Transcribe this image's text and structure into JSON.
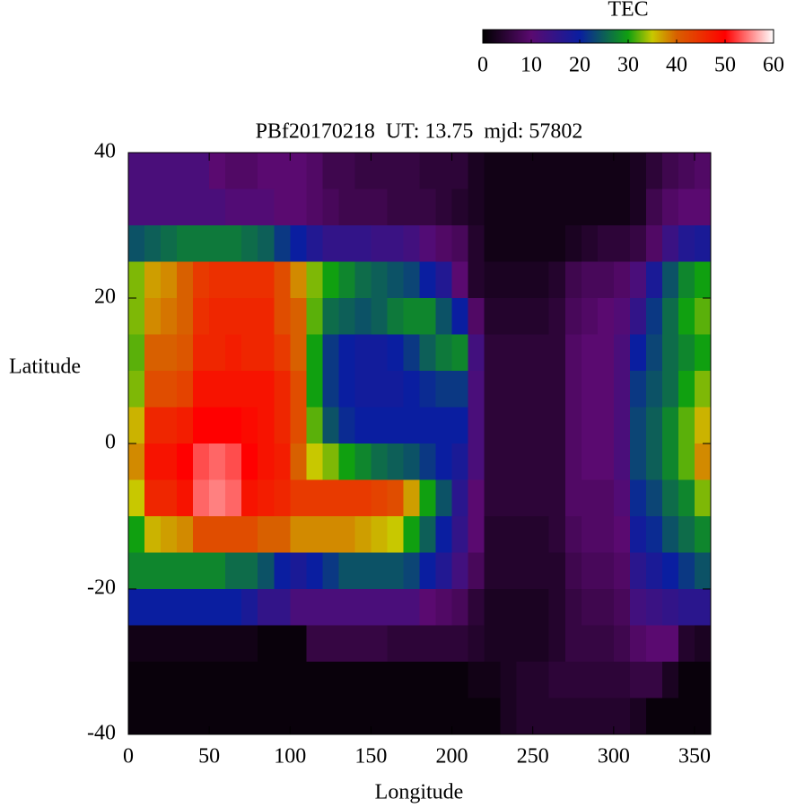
{
  "chart_data": {
    "type": "heatmap",
    "title": "PBf20170218  UT: 13.75  mjd: 57802",
    "x_label": "Longitude",
    "y_label": "Latitude",
    "xlim": [
      0,
      360
    ],
    "ylim": [
      -40,
      40
    ],
    "xticks": [
      0,
      50,
      100,
      150,
      200,
      250,
      300,
      350
    ],
    "yticks": [
      -40,
      -20,
      0,
      20,
      40
    ],
    "x": [
      5,
      15,
      25,
      35,
      45,
      55,
      65,
      75,
      85,
      95,
      105,
      115,
      125,
      135,
      145,
      155,
      165,
      175,
      185,
      195,
      205,
      215,
      225,
      235,
      245,
      255,
      265,
      275,
      285,
      295,
      305,
      315,
      325,
      335,
      345,
      355
    ],
    "y": [
      37.5,
      32.5,
      27.5,
      22.5,
      17.5,
      12.5,
      7.5,
      2.5,
      -2.5,
      -7.5,
      -12.5,
      -17.5,
      -22.5,
      -27.5,
      -32.5,
      -37.5
    ],
    "z": [
      [
        12,
        12,
        12,
        12,
        12,
        10,
        9,
        9,
        10,
        10,
        10,
        9,
        7,
        7,
        6,
        6,
        6,
        6,
        5,
        5,
        5,
        3,
        2,
        2,
        2,
        2,
        2,
        2,
        2,
        2,
        2,
        3,
        5,
        7,
        8,
        9
      ],
      [
        12,
        12,
        12,
        12,
        12,
        12,
        11,
        11,
        11,
        10,
        10,
        9,
        8,
        7,
        7,
        7,
        6,
        6,
        6,
        5,
        4,
        3,
        2,
        2,
        2,
        2,
        2,
        2,
        2,
        2,
        2,
        3,
        7,
        9,
        10,
        10
      ],
      [
        24,
        25,
        26,
        27,
        27,
        27,
        27,
        26,
        25,
        22,
        20,
        17,
        15,
        15,
        15,
        14,
        14,
        13,
        11,
        9,
        8,
        4,
        2,
        2,
        2,
        2,
        2,
        3,
        4,
        5,
        5,
        6,
        9,
        14,
        17,
        18
      ],
      [
        33,
        37,
        38,
        40,
        44,
        45,
        45,
        45,
        45,
        42,
        38,
        33,
        30,
        28,
        26,
        25,
        24,
        23,
        20,
        17,
        10,
        4,
        3,
        3,
        3,
        3,
        4,
        7,
        8,
        8,
        9,
        12,
        18,
        24,
        28,
        30
      ],
      [
        33,
        38,
        39,
        40,
        45,
        46,
        46,
        46,
        46,
        42,
        40,
        32,
        26,
        25,
        24,
        25,
        27,
        28,
        28,
        24,
        20,
        9,
        4,
        4,
        4,
        4,
        5,
        8,
        9,
        10,
        11,
        15,
        22,
        26,
        30,
        32
      ],
      [
        32,
        40,
        40,
        41,
        46,
        46,
        47,
        46,
        46,
        44,
        40,
        30,
        22,
        20,
        19,
        19,
        20,
        22,
        25,
        27,
        28,
        13,
        5,
        5,
        5,
        5,
        5,
        9,
        10,
        10,
        12,
        20,
        23,
        26,
        28,
        30
      ],
      [
        33,
        42,
        42,
        43,
        48,
        48,
        48,
        48,
        48,
        46,
        42,
        30,
        22,
        20,
        19,
        19,
        19,
        20,
        21,
        22,
        22,
        12,
        5,
        5,
        5,
        5,
        5,
        9,
        10,
        10,
        12,
        22,
        24,
        26,
        30,
        33
      ],
      [
        36,
        46,
        46,
        47,
        50,
        50,
        50,
        49,
        48,
        46,
        42,
        32,
        24,
        21,
        20,
        20,
        20,
        20,
        20,
        20,
        20,
        12,
        5,
        5,
        5,
        5,
        5,
        9,
        10,
        10,
        12,
        23,
        25,
        28,
        32,
        36
      ],
      [
        38,
        48,
        48,
        50,
        53,
        54,
        53,
        50,
        48,
        47,
        40,
        35,
        33,
        30,
        28,
        26,
        25,
        24,
        22,
        20,
        18,
        12,
        5,
        5,
        5,
        5,
        5,
        9,
        10,
        10,
        12,
        23,
        25,
        28,
        32,
        38
      ],
      [
        35,
        46,
        46,
        48,
        54,
        55,
        54,
        48,
        47,
        46,
        44,
        44,
        44,
        44,
        44,
        43,
        42,
        37,
        30,
        24,
        16,
        10,
        5,
        5,
        5,
        5,
        5,
        9,
        9,
        9,
        11,
        21,
        23,
        26,
        28,
        33
      ],
      [
        30,
        36,
        37,
        38,
        42,
        42,
        42,
        42,
        40,
        40,
        38,
        38,
        38,
        38,
        37,
        36,
        35,
        30,
        25,
        20,
        15,
        10,
        4,
        4,
        4,
        4,
        5,
        8,
        9,
        9,
        10,
        19,
        21,
        24,
        26,
        28
      ],
      [
        28,
        28,
        28,
        28,
        28,
        28,
        26,
        26,
        24,
        20,
        18,
        20,
        22,
        24,
        24,
        24,
        24,
        23,
        20,
        17,
        13,
        8,
        4,
        4,
        4,
        4,
        4,
        7,
        8,
        8,
        9,
        16,
        18,
        20,
        22,
        24
      ],
      [
        20,
        20,
        20,
        20,
        20,
        20,
        20,
        18,
        15,
        15,
        12,
        12,
        12,
        12,
        12,
        12,
        12,
        12,
        10,
        9,
        8,
        5,
        3,
        3,
        3,
        3,
        4,
        6,
        7,
        7,
        8,
        13,
        14,
        15,
        16,
        16
      ],
      [
        2,
        2,
        2,
        2,
        2,
        2,
        2,
        2,
        1,
        1,
        1,
        6,
        6,
        6,
        6,
        6,
        5,
        5,
        5,
        5,
        5,
        4,
        3,
        3,
        3,
        3,
        4,
        6,
        6,
        6,
        7,
        9,
        10,
        10,
        4,
        3
      ],
      [
        1,
        1,
        1,
        1,
        1,
        1,
        1,
        1,
        1,
        1,
        1,
        1,
        1,
        1,
        1,
        1,
        1,
        1,
        1,
        1,
        1,
        2,
        2,
        3,
        4,
        4,
        5,
        5,
        5,
        5,
        5,
        6,
        6,
        3,
        1,
        1
      ],
      [
        1,
        1,
        1,
        1,
        1,
        1,
        1,
        1,
        1,
        1,
        1,
        1,
        1,
        1,
        1,
        1,
        1,
        1,
        1,
        1,
        1,
        1,
        1,
        3,
        4,
        4,
        4,
        4,
        4,
        4,
        4,
        3,
        1,
        1,
        1,
        1
      ]
    ],
    "colorscale": [
      [
        0,
        "#000000"
      ],
      [
        10,
        "#5a0a70"
      ],
      [
        20,
        "#0a1ea0"
      ],
      [
        30,
        "#10a010"
      ],
      [
        35,
        "#c8c800"
      ],
      [
        40,
        "#d86000"
      ],
      [
        50,
        "#ff0000"
      ],
      [
        60,
        "#ffffff"
      ]
    ],
    "colorbar": {
      "label": "TEC",
      "lim": [
        0,
        60
      ],
      "ticks": [
        0,
        10,
        20,
        30,
        40,
        50,
        60
      ]
    }
  }
}
